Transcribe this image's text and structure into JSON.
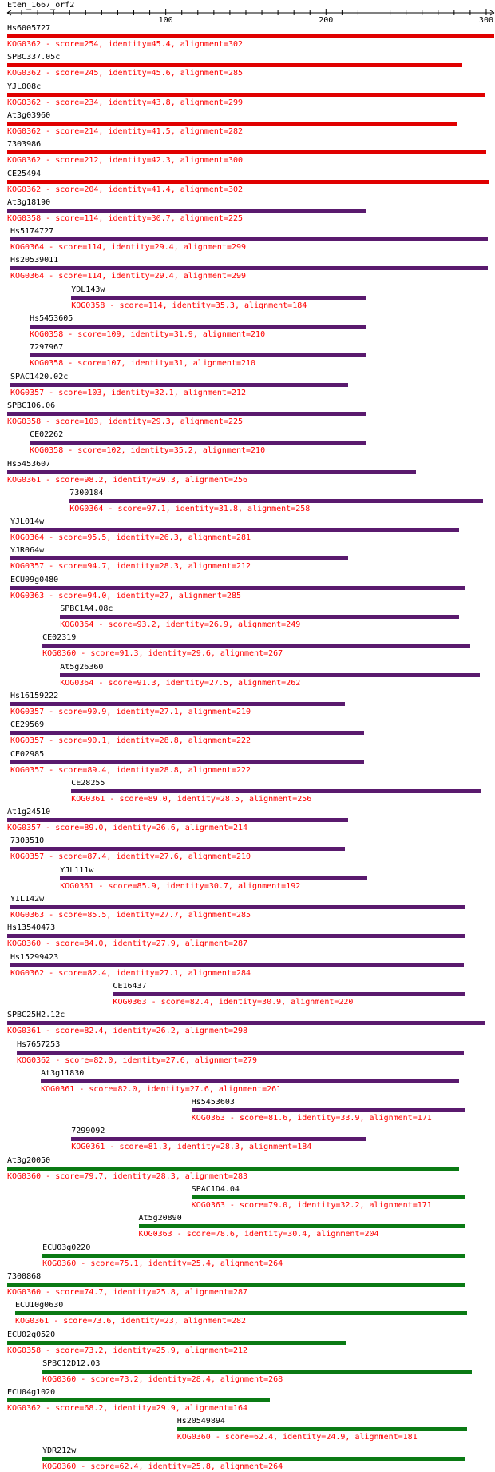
{
  "query": {
    "name": "Eten_1667_orf2",
    "length": 305
  },
  "axis": {
    "ticks": [
      100,
      200,
      300
    ]
  },
  "colors": {
    "red": "#e00000",
    "purple": "#5a1a6e",
    "green": "#0a7a14",
    "label": "#ff0000",
    "name": "#000000"
  },
  "hits": [
    {
      "name": "Hs6005727",
      "kog": "KOG0362",
      "score": "254",
      "identity": "45.4",
      "alignment": "302",
      "start": 1,
      "end": 305,
      "color": "red"
    },
    {
      "name": "SPBC337.05c",
      "kog": "KOG0362",
      "score": "245",
      "identity": "45.6",
      "alignment": "285",
      "start": 1,
      "end": 285,
      "color": "red"
    },
    {
      "name": "YJL008c",
      "kog": "KOG0362",
      "score": "234",
      "identity": "43.8",
      "alignment": "299",
      "start": 1,
      "end": 299,
      "color": "red"
    },
    {
      "name": "At3g03960",
      "kog": "KOG0362",
      "score": "214",
      "identity": "41.5",
      "alignment": "282",
      "start": 1,
      "end": 282,
      "color": "red"
    },
    {
      "name": "7303986",
      "kog": "KOG0362",
      "score": "212",
      "identity": "42.3",
      "alignment": "300",
      "start": 1,
      "end": 300,
      "color": "red"
    },
    {
      "name": "CE25494",
      "kog": "KOG0362",
      "score": "204",
      "identity": "41.4",
      "alignment": "302",
      "start": 1,
      "end": 302,
      "color": "red"
    },
    {
      "name": "At3g18190",
      "kog": "KOG0358",
      "score": "114",
      "identity": "30.7",
      "alignment": "225",
      "start": 1,
      "end": 225,
      "color": "purple"
    },
    {
      "name": "Hs5174727",
      "kog": "KOG0364",
      "score": "114",
      "identity": "29.4",
      "alignment": "299",
      "start": 3,
      "end": 301,
      "color": "purple"
    },
    {
      "name": "Hs20539011",
      "kog": "KOG0364",
      "score": "114",
      "identity": "29.4",
      "alignment": "299",
      "start": 3,
      "end": 301,
      "color": "purple"
    },
    {
      "name": "YDL143w",
      "kog": "KOG0358",
      "score": "114",
      "identity": "35.3",
      "alignment": "184",
      "start": 41,
      "end": 225,
      "color": "purple"
    },
    {
      "name": "Hs5453605",
      "kog": "KOG0358",
      "score": "109",
      "identity": "31.9",
      "alignment": "210",
      "start": 15,
      "end": 225,
      "color": "purple"
    },
    {
      "name": "7297967",
      "kog": "KOG0358",
      "score": "107",
      "identity": "31",
      "alignment": "210",
      "start": 15,
      "end": 225,
      "color": "purple"
    },
    {
      "name": "SPAC1420.02c",
      "kog": "KOG0357",
      "score": "103",
      "identity": "32.1",
      "alignment": "212",
      "start": 3,
      "end": 214,
      "color": "purple"
    },
    {
      "name": "SPBC106.06",
      "kog": "KOG0358",
      "score": "103",
      "identity": "29.3",
      "alignment": "225",
      "start": 1,
      "end": 225,
      "color": "purple"
    },
    {
      "name": "CE02262",
      "kog": "KOG0358",
      "score": "102",
      "identity": "35.2",
      "alignment": "210",
      "start": 15,
      "end": 225,
      "color": "purple"
    },
    {
      "name": "Hs5453607",
      "kog": "KOG0361",
      "score": "98.2",
      "identity": "29.3",
      "alignment": "256",
      "start": 1,
      "end": 256,
      "color": "purple"
    },
    {
      "name": "7300184",
      "kog": "KOG0364",
      "score": "97.1",
      "identity": "31.8",
      "alignment": "258",
      "start": 40,
      "end": 298,
      "color": "purple"
    },
    {
      "name": "YJL014w",
      "kog": "KOG0364",
      "score": "95.5",
      "identity": "26.3",
      "alignment": "281",
      "start": 3,
      "end": 283,
      "color": "purple"
    },
    {
      "name": "YJR064w",
      "kog": "KOG0357",
      "score": "94.7",
      "identity": "28.3",
      "alignment": "212",
      "start": 3,
      "end": 214,
      "color": "purple"
    },
    {
      "name": "ECU09g0480",
      "kog": "KOG0363",
      "score": "94.0",
      "identity": "27",
      "alignment": "285",
      "start": 3,
      "end": 287,
      "color": "purple"
    },
    {
      "name": "SPBC1A4.08c",
      "kog": "KOG0364",
      "score": "93.2",
      "identity": "26.9",
      "alignment": "249",
      "start": 34,
      "end": 283,
      "color": "purple"
    },
    {
      "name": "CE02319",
      "kog": "KOG0360",
      "score": "91.3",
      "identity": "29.6",
      "alignment": "267",
      "start": 23,
      "end": 290,
      "color": "purple"
    },
    {
      "name": "At5g26360",
      "kog": "KOG0364",
      "score": "91.3",
      "identity": "27.5",
      "alignment": "262",
      "start": 34,
      "end": 296,
      "color": "purple"
    },
    {
      "name": "Hs16159222",
      "kog": "KOG0357",
      "score": "90.9",
      "identity": "27.1",
      "alignment": "210",
      "start": 3,
      "end": 212,
      "color": "purple"
    },
    {
      "name": "CE29569",
      "kog": "KOG0357",
      "score": "90.1",
      "identity": "28.8",
      "alignment": "222",
      "start": 3,
      "end": 224,
      "color": "purple"
    },
    {
      "name": "CE02985",
      "kog": "KOG0357",
      "score": "89.4",
      "identity": "28.8",
      "alignment": "222",
      "start": 3,
      "end": 224,
      "color": "purple"
    },
    {
      "name": "CE28255",
      "kog": "KOG0361",
      "score": "89.0",
      "identity": "28.5",
      "alignment": "256",
      "start": 41,
      "end": 297,
      "color": "purple"
    },
    {
      "name": "At1g24510",
      "kog": "KOG0357",
      "score": "89.0",
      "identity": "26.6",
      "alignment": "214",
      "start": 1,
      "end": 214,
      "color": "purple"
    },
    {
      "name": "7303510",
      "kog": "KOG0357",
      "score": "87.4",
      "identity": "27.6",
      "alignment": "210",
      "start": 3,
      "end": 212,
      "color": "purple"
    },
    {
      "name": "YJL111w",
      "kog": "KOG0361",
      "score": "85.9",
      "identity": "30.7",
      "alignment": "192",
      "start": 34,
      "end": 226,
      "color": "purple"
    },
    {
      "name": "YIL142w",
      "kog": "KOG0363",
      "score": "85.5",
      "identity": "27.7",
      "alignment": "285",
      "start": 3,
      "end": 287,
      "color": "purple"
    },
    {
      "name": "Hs13540473",
      "kog": "KOG0360",
      "score": "84.0",
      "identity": "27.9",
      "alignment": "287",
      "start": 1,
      "end": 287,
      "color": "purple"
    },
    {
      "name": "Hs15299423",
      "kog": "KOG0362",
      "score": "82.4",
      "identity": "27.1",
      "alignment": "284",
      "start": 3,
      "end": 286,
      "color": "purple"
    },
    {
      "name": "CE16437",
      "kog": "KOG0363",
      "score": "82.4",
      "identity": "30.9",
      "alignment": "220",
      "start": 67,
      "end": 287,
      "color": "purple"
    },
    {
      "name": "SPBC25H2.12c",
      "kog": "KOG0361",
      "score": "82.4",
      "identity": "26.2",
      "alignment": "298",
      "start": 1,
      "end": 299,
      "color": "purple"
    },
    {
      "name": "Hs7657253",
      "kog": "KOG0362",
      "score": "82.0",
      "identity": "27.6",
      "alignment": "279",
      "start": 7,
      "end": 286,
      "color": "purple"
    },
    {
      "name": "At3g11830",
      "kog": "KOG0361",
      "score": "82.0",
      "identity": "27.6",
      "alignment": "261",
      "start": 22,
      "end": 283,
      "color": "purple"
    },
    {
      "name": "Hs5453603",
      "kog": "KOG0363",
      "score": "81.6",
      "identity": "33.9",
      "alignment": "171",
      "start": 116,
      "end": 287,
      "color": "purple"
    },
    {
      "name": "7299092",
      "kog": "KOG0361",
      "score": "81.3",
      "identity": "28.3",
      "alignment": "184",
      "start": 41,
      "end": 225,
      "color": "purple"
    },
    {
      "name": "At3g20050",
      "kog": "KOG0360",
      "score": "79.7",
      "identity": "28.3",
      "alignment": "283",
      "start": 1,
      "end": 283,
      "color": "green"
    },
    {
      "name": "SPAC1D4.04",
      "kog": "KOG0363",
      "score": "79.0",
      "identity": "32.2",
      "alignment": "171",
      "start": 116,
      "end": 287,
      "color": "green"
    },
    {
      "name": "At5g20890",
      "kog": "KOG0363",
      "score": "78.6",
      "identity": "30.4",
      "alignment": "204",
      "start": 83,
      "end": 287,
      "color": "green"
    },
    {
      "name": "ECU03g0220",
      "kog": "KOG0360",
      "score": "75.1",
      "identity": "25.4",
      "alignment": "264",
      "start": 23,
      "end": 287,
      "color": "green"
    },
    {
      "name": "7300868",
      "kog": "KOG0360",
      "score": "74.7",
      "identity": "25.8",
      "alignment": "287",
      "start": 1,
      "end": 287,
      "color": "green"
    },
    {
      "name": "ECU10g0630",
      "kog": "KOG0361",
      "score": "73.6",
      "identity": "23",
      "alignment": "282",
      "start": 6,
      "end": 288,
      "color": "green"
    },
    {
      "name": "ECU02g0520",
      "kog": "KOG0358",
      "score": "73.2",
      "identity": "25.9",
      "alignment": "212",
      "start": 1,
      "end": 213,
      "color": "green"
    },
    {
      "name": "SPBC12D12.03",
      "kog": "KOG0360",
      "score": "73.2",
      "identity": "28.4",
      "alignment": "268",
      "start": 23,
      "end": 291,
      "color": "green"
    },
    {
      "name": "ECU04g1020",
      "kog": "KOG0362",
      "score": "68.2",
      "identity": "29.9",
      "alignment": "164",
      "start": 1,
      "end": 165,
      "color": "green"
    },
    {
      "name": "Hs20549894",
      "kog": "KOG0360",
      "score": "62.4",
      "identity": "24.9",
      "alignment": "181",
      "start": 107,
      "end": 288,
      "color": "green"
    },
    {
      "name": "YDR212w",
      "kog": "KOG0360",
      "score": "62.4",
      "identity": "25.8",
      "alignment": "264",
      "start": 23,
      "end": 287,
      "color": "green"
    }
  ]
}
